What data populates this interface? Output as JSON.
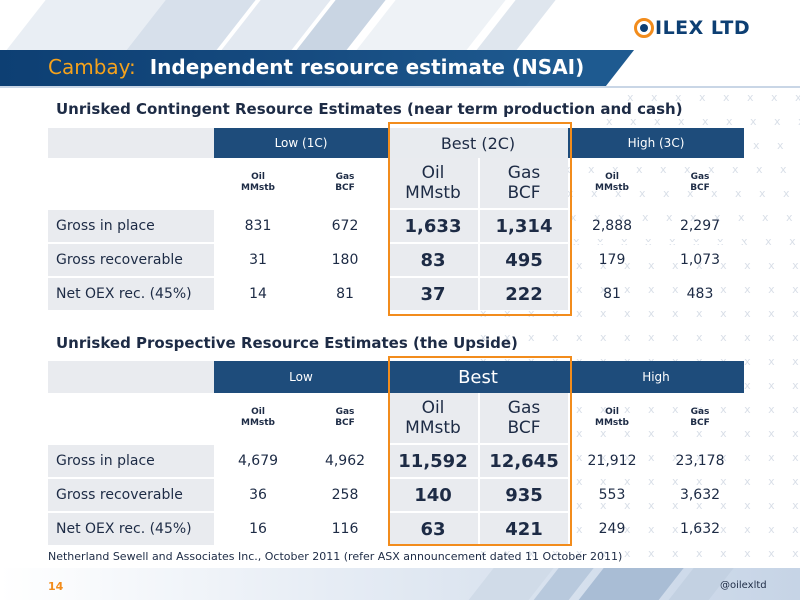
{
  "header": {
    "title_prefix": "Cambay:",
    "title_main": "Independent resource estimate (NSAI)",
    "logo_text": "ILEX LTD",
    "accent_color": "#f28c1c",
    "navy_color": "#1e4c7b"
  },
  "contingent": {
    "section_title": "Unrisked Contingent Resource Estimates (near term production and cash)",
    "groups": {
      "low": "Low (1C)",
      "best": "Best (2C)",
      "high": "High (3C)"
    },
    "sub_small": {
      "oil_1": "Oil",
      "oil_2": "MMstb",
      "gas_1": "Gas",
      "gas_2": "BCF"
    },
    "sub_best": {
      "oil_1": "Oil",
      "oil_2": "MMstb",
      "gas_1": "Gas",
      "gas_2": "BCF"
    },
    "rows": [
      {
        "label": "Gross in place",
        "low_oil": "831",
        "low_gas": "672",
        "best_oil": "1,633",
        "best_gas": "1,314",
        "high_oil": "2,888",
        "high_gas": "2,297"
      },
      {
        "label": "Gross recoverable",
        "low_oil": "31",
        "low_gas": "180",
        "best_oil": "83",
        "best_gas": "495",
        "high_oil": "179",
        "high_gas": "1,073"
      },
      {
        "label": "Net OEX rec. (45%)",
        "low_oil": "14",
        "low_gas": "81",
        "best_oil": "37",
        "best_gas": "222",
        "high_oil": "81",
        "high_gas": "483"
      }
    ]
  },
  "prospective": {
    "section_title": "Unrisked Prospective Resource Estimates (the Upside)",
    "groups": {
      "low": "Low",
      "best": "Best",
      "high": "High"
    },
    "sub_small": {
      "oil_1": "Oil",
      "oil_2": "MMstb",
      "gas_1": "Gas",
      "gas_2": "BCF"
    },
    "sub_best": {
      "oil_1": "Oil",
      "oil_2": "MMstb",
      "gas_1": "Gas",
      "gas_2": "BCF"
    },
    "rows": [
      {
        "label": "Gross in place",
        "low_oil": "4,679",
        "low_gas": "4,962",
        "best_oil": "11,592",
        "best_gas": "12,645",
        "high_oil": "21,912",
        "high_gas": "23,178"
      },
      {
        "label": "Gross recoverable",
        "low_oil": "36",
        "low_gas": "258",
        "best_oil": "140",
        "best_gas": "935",
        "high_oil": "553",
        "high_gas": "3,632"
      },
      {
        "label": "Net OEX rec. (45%)",
        "low_oil": "16",
        "low_gas": "116",
        "best_oil": "63",
        "best_gas": "421",
        "high_oil": "249",
        "high_gas": "1,632"
      }
    ]
  },
  "footnote": "Netherland Sewell and Associates Inc., October 2011 (refer ASX announcement dated 11 October 2011)",
  "footer": {
    "page_number": "14",
    "handle": "@oilexltd"
  }
}
